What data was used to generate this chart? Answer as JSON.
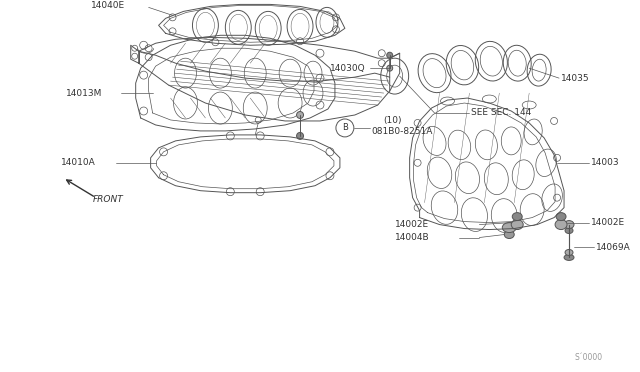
{
  "background_color": "#ffffff",
  "line_color": "#555555",
  "fig_width": 6.4,
  "fig_height": 3.72,
  "dpi": 100,
  "lw": 0.7,
  "tlw": 0.5,
  "label_fs": 6.5,
  "watermark": "S´0000",
  "parts": {
    "plenum_label": "SEE SEC. 144",
    "gasket_upper_label": "14010A",
    "manifold_lower_label": "14013M",
    "gasket_lower_label": "14040E",
    "bolt_label": "081B0-8251A",
    "bolt_label2": "(10)",
    "part1": "14004B",
    "part2_left": "14002E",
    "part2_right": "14002E",
    "part3": "14069A",
    "part4": "14003",
    "part5": "14030Q",
    "part6": "14035",
    "front": "FRONT"
  }
}
